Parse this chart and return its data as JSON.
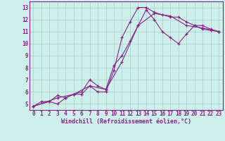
{
  "xlabel": "Windchill (Refroidissement éolien,°C)",
  "bg_color": "#cef0eb",
  "grid_color": "#aacccc",
  "line_color": "#882288",
  "xlim": [
    -0.5,
    23.5
  ],
  "ylim": [
    4.5,
    13.5
  ],
  "xticks": [
    0,
    1,
    2,
    3,
    4,
    5,
    6,
    7,
    8,
    9,
    10,
    11,
    12,
    13,
    14,
    15,
    16,
    17,
    18,
    19,
    20,
    21,
    22,
    23
  ],
  "yticks": [
    5,
    6,
    7,
    8,
    9,
    10,
    11,
    12,
    13
  ],
  "line1_x": [
    0,
    1,
    2,
    3,
    4,
    5,
    6,
    7,
    8,
    9,
    10,
    11,
    12,
    13,
    14,
    15,
    16,
    17,
    18,
    19,
    20,
    21,
    22,
    23
  ],
  "line1_y": [
    4.8,
    5.2,
    5.2,
    5.0,
    5.5,
    5.8,
    5.8,
    6.5,
    6.0,
    6.0,
    7.8,
    10.5,
    11.8,
    13.0,
    13.0,
    12.6,
    12.4,
    12.2,
    12.2,
    11.8,
    11.5,
    11.2,
    11.1,
    11.0
  ],
  "line2_x": [
    0,
    2,
    3,
    4,
    5,
    6,
    7,
    8,
    9,
    10,
    11,
    12,
    13,
    14,
    15,
    16,
    17,
    18,
    19,
    20,
    21,
    22,
    23
  ],
  "line2_y": [
    4.8,
    5.2,
    5.7,
    5.5,
    5.8,
    6.0,
    7.0,
    6.5,
    6.2,
    8.2,
    9.0,
    10.2,
    11.5,
    12.8,
    12.0,
    11.0,
    10.5,
    10.0,
    10.8,
    11.5,
    11.5,
    11.2,
    11.0
  ],
  "line3_x": [
    0,
    3,
    5,
    7,
    9,
    11,
    13,
    15,
    17,
    19,
    21,
    23
  ],
  "line3_y": [
    4.8,
    5.5,
    5.8,
    6.5,
    6.2,
    8.5,
    11.5,
    12.5,
    12.3,
    11.5,
    11.3,
    11.0
  ],
  "tick_fontsize": 5.5,
  "xlabel_fontsize": 6.0
}
